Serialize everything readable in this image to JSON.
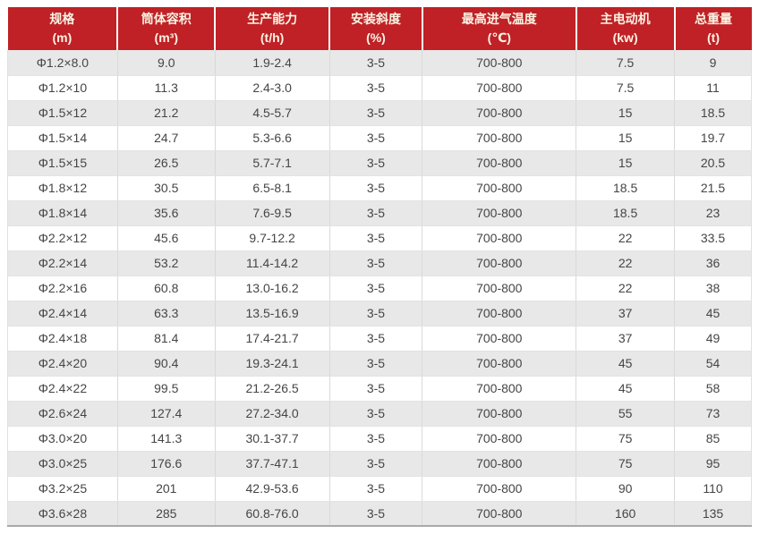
{
  "colors": {
    "header_bg": "#bf2126",
    "header_text": "#faf3e3",
    "row_alt_bg": "#e8e8e8",
    "row_bg": "#ffffff",
    "cell_text": "#454545",
    "bottom_border": "#a9a9a9"
  },
  "table": {
    "columns": [
      {
        "name": "规格",
        "unit": "(m)"
      },
      {
        "name": "筒体容积",
        "unit": "(m³)"
      },
      {
        "name": "生产能力",
        "unit": "(t/h)"
      },
      {
        "name": "安装斜度",
        "unit": "(%)"
      },
      {
        "name": "最高进气温度",
        "unit": "(℃)"
      },
      {
        "name": "主电动机",
        "unit": "(kw)"
      },
      {
        "name": "总重量",
        "unit": "(t)"
      }
    ],
    "rows": [
      [
        "Φ1.2×8.0",
        "9.0",
        "1.9-2.4",
        "3-5",
        "700-800",
        "7.5",
        "9"
      ],
      [
        "Φ1.2×10",
        "11.3",
        "2.4-3.0",
        "3-5",
        "700-800",
        "7.5",
        "11"
      ],
      [
        "Φ1.5×12",
        "21.2",
        "4.5-5.7",
        "3-5",
        "700-800",
        "15",
        "18.5"
      ],
      [
        "Φ1.5×14",
        "24.7",
        "5.3-6.6",
        "3-5",
        "700-800",
        "15",
        "19.7"
      ],
      [
        "Φ1.5×15",
        "26.5",
        "5.7-7.1",
        "3-5",
        "700-800",
        "15",
        "20.5"
      ],
      [
        "Φ1.8×12",
        "30.5",
        "6.5-8.1",
        "3-5",
        "700-800",
        "18.5",
        "21.5"
      ],
      [
        "Φ1.8×14",
        "35.6",
        "7.6-9.5",
        "3-5",
        "700-800",
        "18.5",
        "23"
      ],
      [
        "Φ2.2×12",
        "45.6",
        "9.7-12.2",
        "3-5",
        "700-800",
        "22",
        "33.5"
      ],
      [
        "Φ2.2×14",
        "53.2",
        "11.4-14.2",
        "3-5",
        "700-800",
        "22",
        "36"
      ],
      [
        "Φ2.2×16",
        "60.8",
        "13.0-16.2",
        "3-5",
        "700-800",
        "22",
        "38"
      ],
      [
        "Φ2.4×14",
        "63.3",
        "13.5-16.9",
        "3-5",
        "700-800",
        "37",
        "45"
      ],
      [
        "Φ2.4×18",
        "81.4",
        "17.4-21.7",
        "3-5",
        "700-800",
        "37",
        "49"
      ],
      [
        "Φ2.4×20",
        "90.4",
        "19.3-24.1",
        "3-5",
        "700-800",
        "45",
        "54"
      ],
      [
        "Φ2.4×22",
        "99.5",
        "21.2-26.5",
        "3-5",
        "700-800",
        "45",
        "58"
      ],
      [
        "Φ2.6×24",
        "127.4",
        "27.2-34.0",
        "3-5",
        "700-800",
        "55",
        "73"
      ],
      [
        "Φ3.0×20",
        "141.3",
        "30.1-37.7",
        "3-5",
        "700-800",
        "75",
        "85"
      ],
      [
        "Φ3.0×25",
        "176.6",
        "37.7-47.1",
        "3-5",
        "700-800",
        "75",
        "95"
      ],
      [
        "Φ3.2×25",
        "201",
        "42.9-53.6",
        "3-5",
        "700-800",
        "90",
        "110"
      ],
      [
        "Φ3.6×28",
        "285",
        "60.8-76.0",
        "3-5",
        "700-800",
        "160",
        "135"
      ]
    ]
  }
}
